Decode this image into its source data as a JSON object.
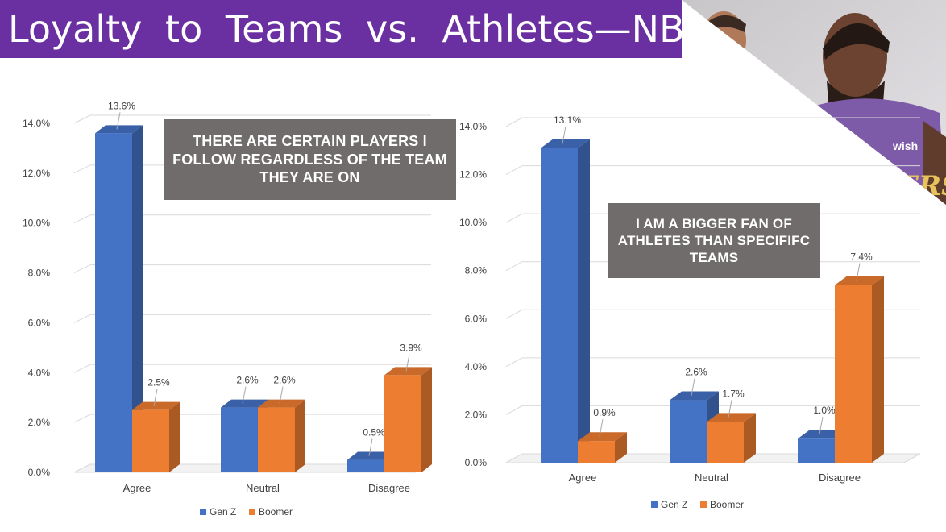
{
  "title": "Loyalty to Teams vs. Athletes—NBA",
  "photo": {
    "icon": "nba-players-photo-icon",
    "jersey_text": "LAKERS",
    "sponsor_text": "wish"
  },
  "colors": {
    "banner": "#6a2fa0",
    "gen_z": "#4472c4",
    "boomer": "#ed7d31",
    "callout_bg": "#6f6c6b",
    "grid": "#d9d9d9",
    "text": "#404040"
  },
  "chart_data": [
    {
      "type": "bar",
      "title": "",
      "callout": "THERE ARE CERTAIN PLAYERS I FOLLOW REGARDLESS OF THE TEAM THEY ARE ON",
      "categories": [
        "Agree",
        "Neutral",
        "Disagree"
      ],
      "series": [
        {
          "name": "Gen Z",
          "values": [
            13.6,
            2.6,
            0.5
          ]
        },
        {
          "name": "Boomer",
          "values": [
            2.5,
            2.6,
            3.9
          ]
        }
      ],
      "data_labels": [
        [
          "13.6%",
          "2.6%",
          "0.5%"
        ],
        [
          "2.5%",
          "2.6%",
          "3.9%"
        ]
      ],
      "y_ticks": [
        "0.0%",
        "2.0%",
        "4.0%",
        "6.0%",
        "8.0%",
        "10.0%",
        "12.0%",
        "14.0%"
      ],
      "ylim": [
        0,
        14
      ],
      "legend": [
        "Gen Z",
        "Boomer"
      ],
      "legend_position": "bottom",
      "grid": true
    },
    {
      "type": "bar",
      "title": "",
      "callout": "I AM A BIGGER FAN OF ATHLETES THAN SPECIFIFC TEAMS",
      "categories": [
        "Agree",
        "Neutral",
        "Disagree"
      ],
      "series": [
        {
          "name": "Gen Z",
          "values": [
            13.1,
            2.6,
            1.0
          ]
        },
        {
          "name": "Boomer",
          "values": [
            0.9,
            1.7,
            7.4
          ]
        }
      ],
      "data_labels": [
        [
          "13.1%",
          "2.6%",
          "1.0%"
        ],
        [
          "0.9%",
          "1.7%",
          "7.4%"
        ]
      ],
      "y_ticks": [
        "0.0%",
        "2.0%",
        "4.0%",
        "6.0%",
        "8.0%",
        "10.0%",
        "12.0%",
        "14.0%"
      ],
      "ylim": [
        0,
        14
      ],
      "legend": [
        "Gen Z",
        "Boomer"
      ],
      "legend_position": "bottom",
      "grid": true
    }
  ]
}
